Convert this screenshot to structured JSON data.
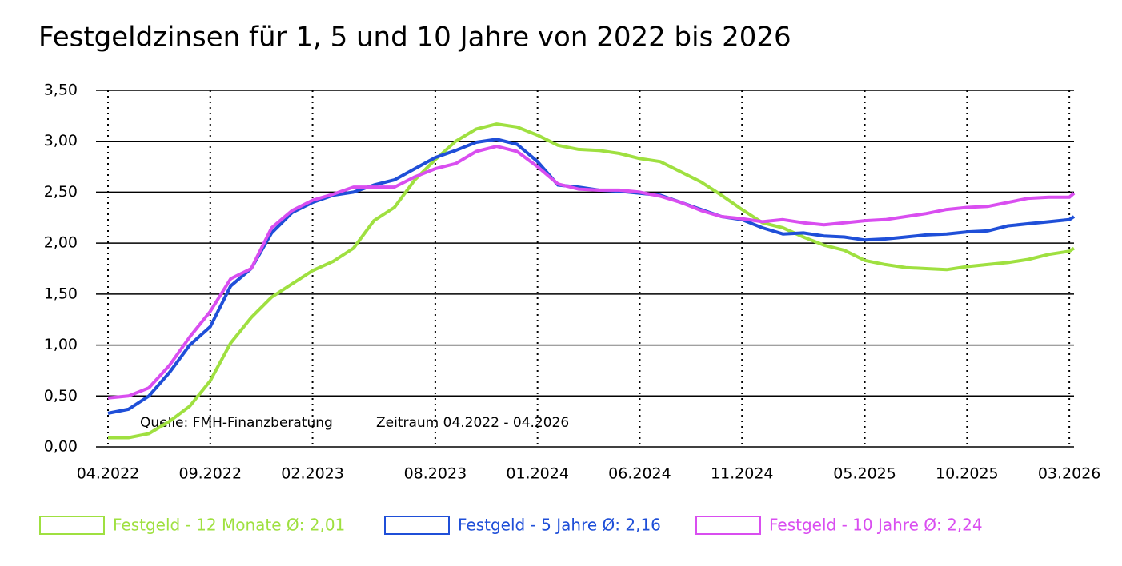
{
  "chart_data": {
    "type": "line",
    "title": "Festgeldzinsen für 1, 5 und 10 Jahre von 2022 bis 2026",
    "annotations": [
      "Quelle: FMH-Finanzberatung",
      "Zeitraum 04.2022 - 04.2026"
    ],
    "x": [
      0,
      1,
      2,
      3,
      4,
      5,
      6,
      7,
      8,
      9,
      10,
      11,
      12,
      13,
      14,
      15,
      16,
      17,
      18,
      19,
      20,
      21,
      22,
      23,
      24,
      25,
      26,
      27,
      28,
      29,
      30,
      31,
      32,
      33,
      34,
      35,
      36,
      37,
      38,
      39,
      40,
      41,
      42,
      43,
      44,
      45,
      46,
      47,
      47.23
    ],
    "xlim": [
      0,
      47.23
    ],
    "xticks": [
      {
        "value": 0,
        "label": "04.2022"
      },
      {
        "value": 5,
        "label": "09.2022"
      },
      {
        "value": 10,
        "label": "02.2023"
      },
      {
        "value": 16,
        "label": "08.2023"
      },
      {
        "value": 21,
        "label": "01.2024"
      },
      {
        "value": 26,
        "label": "06.2024"
      },
      {
        "value": 31,
        "label": "11.2024"
      },
      {
        "value": 37,
        "label": "05.2025"
      },
      {
        "value": 42,
        "label": "10.2025"
      },
      {
        "value": 47,
        "label": "03.2026"
      }
    ],
    "ylim": [
      0,
      3.5
    ],
    "yticks": [
      {
        "value": 0,
        "label": "0,00"
      },
      {
        "value": 0.5,
        "label": "0,50"
      },
      {
        "value": 1,
        "label": "1,00"
      },
      {
        "value": 1.5,
        "label": "1,50"
      },
      {
        "value": 2,
        "label": "2,00"
      },
      {
        "value": 2.5,
        "label": "2,50"
      },
      {
        "value": 3,
        "label": "3,00"
      },
      {
        "value": 3.5,
        "label": "3,50"
      }
    ],
    "grid": true,
    "series": [
      {
        "name": "Festgeld - 12 Monate Ø: 2,01",
        "color": "#9fe040",
        "values": [
          0.09,
          0.09,
          0.13,
          0.25,
          0.4,
          0.65,
          1.02,
          1.27,
          1.47,
          1.6,
          1.73,
          1.82,
          1.95,
          2.22,
          2.35,
          2.62,
          2.82,
          3.0,
          3.12,
          3.17,
          3.14,
          3.06,
          2.96,
          2.92,
          2.91,
          2.88,
          2.83,
          2.8,
          2.7,
          2.6,
          2.47,
          2.33,
          2.2,
          2.15,
          2.06,
          1.98,
          1.93,
          1.83,
          1.79,
          1.76,
          1.75,
          1.74,
          1.77,
          1.79,
          1.81,
          1.84,
          1.89,
          1.92,
          1.95
        ]
      },
      {
        "name": "Festgeld - 5 Jahre Ø: 2,16",
        "color": "#1f4fd8",
        "values": [
          0.33,
          0.37,
          0.5,
          0.73,
          1.0,
          1.18,
          1.58,
          1.75,
          2.1,
          2.3,
          2.4,
          2.47,
          2.5,
          2.57,
          2.62,
          2.73,
          2.84,
          2.91,
          2.99,
          3.02,
          2.97,
          2.8,
          2.57,
          2.55,
          2.52,
          2.51,
          2.49,
          2.47,
          2.4,
          2.33,
          2.26,
          2.23,
          2.15,
          2.09,
          2.1,
          2.07,
          2.06,
          2.03,
          2.04,
          2.06,
          2.08,
          2.09,
          2.11,
          2.12,
          2.17,
          2.19,
          2.21,
          2.23,
          2.26
        ]
      },
      {
        "name": "Festgeld - 10 Jahre Ø: 2,24",
        "color": "#d94ef0",
        "values": [
          0.48,
          0.5,
          0.58,
          0.8,
          1.08,
          1.33,
          1.65,
          1.75,
          2.15,
          2.32,
          2.42,
          2.48,
          2.55,
          2.55,
          2.55,
          2.65,
          2.73,
          2.78,
          2.9,
          2.95,
          2.9,
          2.75,
          2.58,
          2.53,
          2.52,
          2.52,
          2.5,
          2.46,
          2.4,
          2.32,
          2.26,
          2.24,
          2.21,
          2.23,
          2.2,
          2.18,
          2.2,
          2.22,
          2.23,
          2.26,
          2.29,
          2.33,
          2.35,
          2.36,
          2.4,
          2.44,
          2.45,
          2.45,
          2.49
        ]
      }
    ]
  }
}
